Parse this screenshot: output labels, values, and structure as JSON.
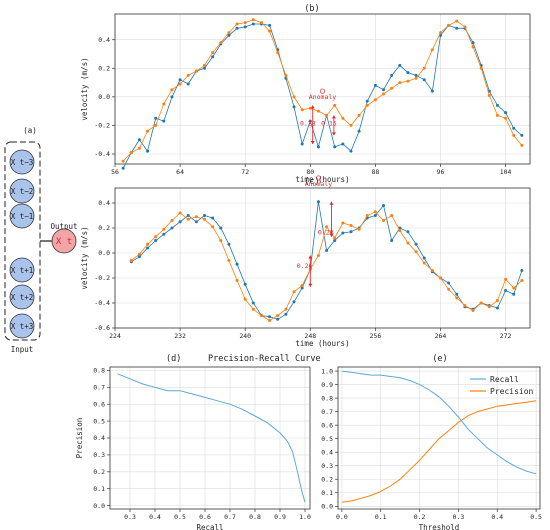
{
  "panels": {
    "a": {
      "label": "(a)",
      "input_label": "Input",
      "output_label": "Output",
      "inputs": [
        "X t−3",
        "X t−2",
        "X t−1",
        "X t+1",
        "X t+2",
        "X t+3"
      ],
      "output": "X t"
    },
    "b": {
      "label": "(b)"
    },
    "c": {
      "label": "(c)"
    },
    "d": {
      "label": "(d)"
    },
    "e": {
      "label": "(e)"
    }
  },
  "colors": {
    "blue": "#1f77b4",
    "lightblue": "#5aa9d6",
    "orange": "#ff7f0e",
    "red": "#e3262b",
    "node_fill": "#a9c3ea",
    "output_fill": "#f4a3a6"
  },
  "chart_data": [
    {
      "id": "b",
      "type": "line",
      "xlabel": "time (hours)",
      "ylabel": "velocity (m/s)",
      "xlim": [
        56,
        107
      ],
      "ylim": [
        -0.47,
        0.58
      ],
      "xticks": [
        56,
        64,
        72,
        80,
        88,
        96,
        104
      ],
      "yticks": [
        -0.4,
        -0.2,
        0.0,
        0.2,
        0.4
      ],
      "grid": true,
      "series": [
        {
          "color": "blue",
          "x": [
            57,
            58,
            59,
            60,
            61,
            62,
            63,
            64,
            65,
            66,
            67,
            68,
            69,
            70,
            71,
            72,
            73,
            74,
            75,
            76,
            77,
            78,
            79,
            80,
            81,
            82,
            83,
            84,
            85,
            86,
            87,
            88,
            89,
            90,
            91,
            92,
            93,
            94,
            95,
            96,
            97,
            98,
            99,
            100,
            101,
            102,
            103,
            104,
            105,
            106
          ],
          "y": [
            -0.5,
            -0.39,
            -0.3,
            -0.38,
            -0.15,
            -0.17,
            0.0,
            0.12,
            0.09,
            0.18,
            0.2,
            0.28,
            0.37,
            0.43,
            0.48,
            0.49,
            0.51,
            0.51,
            0.5,
            0.33,
            0.13,
            -0.07,
            -0.33,
            -0.17,
            -0.35,
            -0.13,
            -0.35,
            -0.33,
            -0.38,
            -0.24,
            -0.03,
            0.08,
            0.05,
            0.15,
            0.22,
            0.17,
            0.15,
            0.12,
            0.04,
            0.43,
            0.5,
            0.48,
            0.48,
            0.38,
            0.22,
            0.04,
            -0.06,
            -0.11,
            -0.22,
            -0.27
          ]
        },
        {
          "color": "orange",
          "x": [
            57,
            58,
            59,
            60,
            61,
            62,
            63,
            64,
            65,
            66,
            67,
            68,
            69,
            70,
            71,
            72,
            73,
            74,
            75,
            76,
            77,
            78,
            79,
            80,
            81,
            82,
            83,
            84,
            85,
            86,
            87,
            88,
            89,
            90,
            91,
            92,
            93,
            94,
            95,
            96,
            97,
            98,
            99,
            100,
            101,
            102,
            103,
            104,
            105,
            106
          ],
          "y": [
            -0.45,
            -0.39,
            -0.36,
            -0.24,
            -0.2,
            -0.05,
            0.05,
            0.09,
            0.15,
            0.18,
            0.22,
            0.31,
            0.38,
            0.45,
            0.51,
            0.52,
            0.54,
            0.52,
            0.46,
            0.31,
            0.15,
            0.0,
            -0.09,
            -0.08,
            -0.1,
            -0.13,
            -0.06,
            -0.15,
            -0.2,
            -0.13,
            -0.06,
            -0.02,
            0.02,
            0.06,
            0.1,
            0.11,
            0.13,
            0.2,
            0.33,
            0.45,
            0.5,
            0.53,
            0.49,
            0.35,
            0.2,
            0.01,
            -0.13,
            -0.15,
            -0.27,
            -0.34
          ]
        }
      ],
      "annotations": [
        {
          "text": "Anomaly",
          "x": 81.5,
          "y": -0.03
        },
        {
          "text": "0.28",
          "x": 79.7,
          "y": -0.2
        },
        {
          "text": "0.15",
          "x": 82.3,
          "y": -0.2
        }
      ]
    },
    {
      "id": "c",
      "type": "line",
      "xlabel": "time (hours)",
      "ylabel": "velocity (m/s)",
      "xlim": [
        224,
        275
      ],
      "ylim": [
        -0.6,
        0.52
      ],
      "xticks": [
        224,
        232,
        240,
        248,
        256,
        264,
        272
      ],
      "yticks": [
        -0.6,
        -0.4,
        -0.2,
        0.0,
        0.2,
        0.4
      ],
      "grid": true,
      "series": [
        {
          "color": "blue",
          "x": [
            226,
            227,
            228,
            229,
            230,
            231,
            232,
            233,
            234,
            235,
            236,
            237,
            238,
            239,
            240,
            241,
            242,
            243,
            244,
            245,
            246,
            247,
            248,
            249,
            250,
            251,
            252,
            253,
            254,
            255,
            256,
            257,
            258,
            259,
            260,
            261,
            262,
            263,
            264,
            265,
            266,
            267,
            268,
            269,
            270,
            271,
            272,
            273,
            274
          ],
          "y": [
            -0.07,
            -0.03,
            0.04,
            0.1,
            0.15,
            0.2,
            0.25,
            0.3,
            0.25,
            0.3,
            0.28,
            0.2,
            0.07,
            -0.09,
            -0.25,
            -0.4,
            -0.5,
            -0.51,
            -0.53,
            -0.49,
            -0.39,
            -0.28,
            -0.13,
            0.41,
            0.02,
            0.1,
            0.16,
            0.17,
            0.2,
            0.28,
            0.3,
            0.38,
            0.1,
            0.2,
            0.17,
            0.07,
            -0.04,
            -0.15,
            -0.2,
            -0.24,
            -0.33,
            -0.43,
            -0.45,
            -0.4,
            -0.42,
            -0.44,
            -0.3,
            -0.33,
            -0.14
          ]
        },
        {
          "color": "orange",
          "x": [
            226,
            227,
            228,
            229,
            230,
            231,
            232,
            233,
            234,
            235,
            236,
            237,
            238,
            239,
            240,
            241,
            242,
            243,
            244,
            245,
            246,
            247,
            248,
            249,
            250,
            251,
            252,
            253,
            254,
            255,
            256,
            257,
            258,
            259,
            260,
            261,
            262,
            263,
            264,
            265,
            266,
            267,
            268,
            269,
            270,
            271,
            272,
            273,
            274
          ],
          "y": [
            -0.06,
            -0.01,
            0.07,
            0.13,
            0.19,
            0.26,
            0.32,
            0.27,
            0.29,
            0.27,
            0.21,
            0.1,
            -0.06,
            -0.22,
            -0.37,
            -0.45,
            -0.5,
            -0.54,
            -0.5,
            -0.45,
            -0.31,
            -0.26,
            -0.13,
            -0.02,
            0.21,
            0.12,
            0.24,
            0.22,
            0.19,
            0.3,
            0.33,
            0.26,
            0.3,
            0.18,
            0.08,
            0.01,
            -0.08,
            -0.14,
            -0.2,
            -0.29,
            -0.36,
            -0.42,
            -0.46,
            -0.4,
            -0.43,
            -0.38,
            -0.21,
            -0.28,
            -0.22
          ]
        }
      ],
      "annotations": [
        {
          "text": "Anomaly",
          "x": 249,
          "y": 0.52
        },
        {
          "text": "0.26",
          "x": 247.3,
          "y": -0.12
        },
        {
          "text": "0.28",
          "x": 249.9,
          "y": 0.15
        }
      ]
    },
    {
      "id": "d",
      "type": "line",
      "title": "Precision-Recall Curve",
      "xlabel": "Recall",
      "ylabel": "Precision",
      "xlim": [
        0.22,
        1.02
      ],
      "ylim": [
        -0.02,
        0.82
      ],
      "xticks": [
        0.3,
        0.4,
        0.5,
        0.6,
        0.7,
        0.8,
        0.9,
        1.0
      ],
      "yticks": [
        0.0,
        0.1,
        0.2,
        0.3,
        0.4,
        0.5,
        0.6,
        0.7,
        0.8
      ],
      "grid": true,
      "series": [
        {
          "color": "lightblue",
          "x": [
            0.25,
            0.3,
            0.35,
            0.4,
            0.45,
            0.5,
            0.55,
            0.6,
            0.65,
            0.7,
            0.75,
            0.8,
            0.85,
            0.9,
            0.93,
            0.95,
            0.97,
            0.98,
            0.99,
            1.0
          ],
          "y": [
            0.78,
            0.75,
            0.72,
            0.7,
            0.68,
            0.68,
            0.66,
            0.64,
            0.62,
            0.6,
            0.57,
            0.53,
            0.49,
            0.43,
            0.38,
            0.32,
            0.2,
            0.13,
            0.07,
            0.02
          ]
        }
      ]
    },
    {
      "id": "e",
      "type": "line",
      "xlabel": "Threshold",
      "xlim": [
        -0.01,
        0.51
      ],
      "ylim": [
        -0.02,
        1.03
      ],
      "xticks": [
        0.0,
        0.1,
        0.2,
        0.3,
        0.4,
        0.5
      ],
      "yticks": [
        0.0,
        0.1,
        0.2,
        0.3,
        0.4,
        0.5,
        0.6,
        0.7,
        0.8,
        0.9,
        1.0
      ],
      "grid": true,
      "legend": "top-right",
      "series": [
        {
          "name": "Recall",
          "color": "lightblue",
          "x": [
            0.0,
            0.025,
            0.05,
            0.075,
            0.1,
            0.125,
            0.15,
            0.175,
            0.2,
            0.225,
            0.25,
            0.275,
            0.3,
            0.325,
            0.35,
            0.375,
            0.4,
            0.425,
            0.45,
            0.475,
            0.5
          ],
          "y": [
            1.0,
            0.99,
            0.98,
            0.97,
            0.97,
            0.96,
            0.95,
            0.93,
            0.9,
            0.86,
            0.81,
            0.74,
            0.66,
            0.57,
            0.5,
            0.43,
            0.38,
            0.33,
            0.29,
            0.26,
            0.24
          ]
        },
        {
          "name": "Precision",
          "color": "orange",
          "x": [
            0.0,
            0.025,
            0.05,
            0.075,
            0.1,
            0.125,
            0.15,
            0.175,
            0.2,
            0.225,
            0.25,
            0.275,
            0.3,
            0.325,
            0.35,
            0.375,
            0.4,
            0.425,
            0.45,
            0.475,
            0.5
          ],
          "y": [
            0.03,
            0.04,
            0.06,
            0.08,
            0.11,
            0.15,
            0.2,
            0.27,
            0.34,
            0.42,
            0.5,
            0.56,
            0.62,
            0.67,
            0.7,
            0.72,
            0.74,
            0.75,
            0.76,
            0.77,
            0.78
          ]
        }
      ]
    }
  ]
}
